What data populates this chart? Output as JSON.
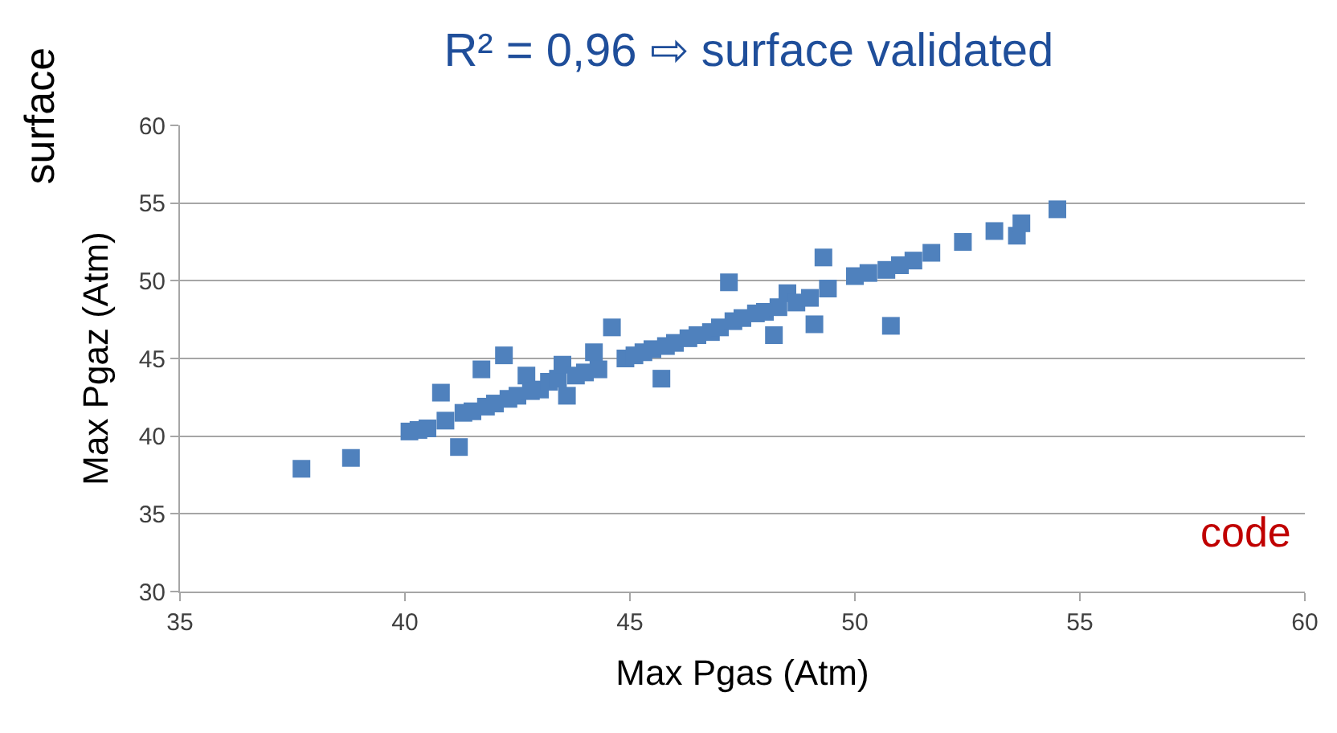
{
  "chart_data": {
    "type": "scatter",
    "title": "R² = 0,96 ⇨ surface validated",
    "xlabel": "Max Pgas (Atm)",
    "ylabel": "Max Pgaz (Atm)",
    "annotations": [
      "surface",
      "code"
    ],
    "x": [
      37.7,
      38.8,
      40.1,
      40.3,
      40.5,
      40.8,
      40.9,
      41.2,
      41.3,
      41.5,
      41.7,
      41.8,
      42.0,
      42.2,
      42.3,
      42.5,
      42.7,
      42.8,
      43.0,
      43.2,
      43.4,
      43.5,
      43.6,
      43.8,
      44.0,
      44.2,
      44.3,
      44.6,
      44.9,
      45.1,
      45.3,
      45.5,
      45.7,
      45.8,
      46.0,
      46.3,
      46.5,
      46.8,
      47.0,
      47.2,
      47.3,
      47.5,
      47.8,
      48.0,
      48.2,
      48.3,
      48.5,
      48.7,
      49.0,
      49.1,
      49.3,
      49.4,
      50.0,
      50.3,
      50.7,
      50.8,
      51.0,
      51.3,
      51.7,
      52.4,
      53.1,
      53.6,
      53.7,
      54.5
    ],
    "values": [
      37.9,
      38.6,
      40.3,
      40.4,
      40.5,
      42.8,
      41.0,
      39.3,
      41.5,
      41.6,
      44.3,
      41.9,
      42.1,
      45.2,
      42.4,
      42.6,
      43.9,
      42.9,
      43.0,
      43.5,
      43.7,
      44.6,
      42.6,
      43.9,
      44.1,
      45.4,
      44.3,
      47.0,
      45.0,
      45.2,
      45.4,
      45.6,
      43.7,
      45.8,
      46.0,
      46.3,
      46.5,
      46.7,
      47.0,
      49.9,
      47.4,
      47.6,
      47.9,
      48.0,
      46.5,
      48.3,
      49.2,
      48.6,
      48.9,
      47.2,
      51.5,
      49.5,
      50.3,
      50.5,
      50.7,
      47.1,
      51.0,
      51.3,
      51.8,
      52.5,
      53.2,
      52.9,
      53.7,
      54.6
    ],
    "color": "#4f81bd",
    "marker": "square",
    "xlim": [
      35,
      60
    ],
    "xticks": [
      35,
      40,
      45,
      50,
      55,
      60
    ],
    "ylim": [
      30,
      60
    ],
    "yticks": [
      30,
      35,
      40,
      45,
      50,
      55,
      60
    ],
    "grid": "y"
  }
}
